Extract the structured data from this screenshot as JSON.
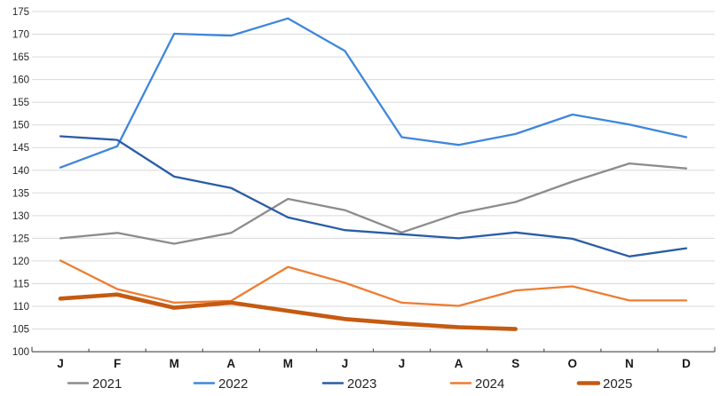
{
  "chart_data": {
    "type": "line",
    "title": "",
    "xlabel": "",
    "ylabel": "",
    "categories": [
      "J",
      "F",
      "M",
      "A",
      "M",
      "J",
      "J",
      "A",
      "S",
      "O",
      "N",
      "D"
    ],
    "ylim": [
      100,
      175
    ],
    "y_step": 5,
    "y_tick_labels": [
      "175",
      "170",
      "165",
      "160",
      "155",
      "150",
      "145",
      "140",
      "135",
      "130",
      "125",
      "120",
      "115",
      "110",
      "105",
      "100"
    ],
    "grid": "horizontal",
    "grid_color": "#D9D9D9",
    "axis_color": "#595959",
    "background": "#FFFFFF",
    "legend_position": "bottom",
    "series": [
      {
        "name": "2021",
        "color": "#8C8C8C",
        "line_weight": "normal",
        "values": [
          125.0,
          126.2,
          123.8,
          126.2,
          133.7,
          131.2,
          126.3,
          130.5,
          133.0,
          137.5,
          141.5,
          140.4
        ]
      },
      {
        "name": "2022",
        "color": "#3E87DB",
        "line_weight": "normal",
        "values": [
          140.6,
          145.3,
          170.1,
          169.7,
          173.5,
          166.3,
          147.3,
          145.6,
          148.0,
          152.3,
          150.1,
          147.3
        ]
      },
      {
        "name": "2023",
        "color": "#2A5DA6",
        "line_weight": "normal",
        "values": [
          147.5,
          146.7,
          138.6,
          136.1,
          129.6,
          126.8,
          125.9,
          125.0,
          126.3,
          124.9,
          121.0,
          122.8
        ]
      },
      {
        "name": "2024",
        "color": "#ED7D31",
        "line_weight": "normal",
        "values": [
          120.1,
          113.8,
          110.8,
          111.2,
          118.7,
          115.2,
          110.8,
          110.1,
          113.5,
          114.4,
          111.3,
          111.3
        ]
      },
      {
        "name": "2025",
        "color": "#C55A11",
        "line_weight": "thick",
        "values": [
          111.7,
          112.6,
          109.7,
          110.8,
          109.0,
          107.2,
          106.2,
          105.4,
          105.0
        ]
      }
    ]
  }
}
